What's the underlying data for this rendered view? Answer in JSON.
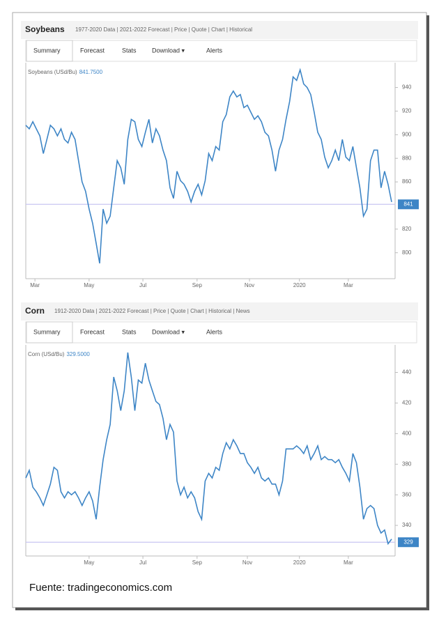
{
  "chart_data": [
    {
      "type": "line",
      "title": "Soybeans",
      "subtitle": "1977-2020 Data | 2021-2022 Forecast | Price | Quote | Chart | Historical",
      "tabs": [
        "Summary",
        "Forecast",
        "Stats",
        "Download ▾",
        "Alerts"
      ],
      "label": "Soybeans (USd/Bu)",
      "price": "841.7500",
      "color": "#3d85c6",
      "values": [
        908,
        905,
        911,
        905,
        899,
        884,
        896,
        908,
        905,
        899,
        905,
        896,
        893,
        902,
        896,
        878,
        860,
        852,
        837,
        825,
        808,
        791,
        837,
        825,
        831,
        855,
        878,
        872,
        858,
        896,
        913,
        911,
        896,
        890,
        902,
        913,
        893,
        905,
        899,
        887,
        878,
        855,
        846,
        869,
        861,
        858,
        852,
        843,
        852,
        858,
        849,
        861,
        884,
        878,
        890,
        887,
        911,
        917,
        932,
        937,
        932,
        934,
        923,
        925,
        919,
        913,
        916,
        911,
        902,
        899,
        887,
        869,
        887,
        896,
        913,
        928,
        949,
        946,
        955,
        943,
        940,
        934,
        919,
        902,
        896,
        881,
        872,
        878,
        887,
        878,
        896,
        881,
        878,
        890,
        872,
        855,
        831,
        837,
        878,
        887,
        887,
        855,
        869,
        858,
        843
      ],
      "xlim": [
        0,
        105
      ],
      "xticks": [
        {
          "value": 2.6,
          "label": "Mar"
        },
        {
          "value": 18,
          "label": "May"
        },
        {
          "value": 33.3,
          "label": "Jul"
        },
        {
          "value": 48.7,
          "label": "Sep"
        },
        {
          "value": 63.6,
          "label": "Nov"
        },
        {
          "value": 77.8,
          "label": "2020"
        },
        {
          "value": 91.7,
          "label": "Mar"
        }
      ],
      "ylim": [
        778,
        961
      ],
      "yticks": [
        940,
        920,
        900,
        880,
        860,
        820,
        800
      ],
      "price_marker": 841
    },
    {
      "type": "line",
      "title": "Corn",
      "subtitle": "1912-2020 Data | 2021-2022 Forecast | Price | Quote | Chart | Historical | News",
      "tabs": [
        "Summary",
        "Forecast",
        "Stats",
        "Download ▾",
        "Alerts"
      ],
      "label": "Corn (USd/Bu)",
      "price": "329.5000",
      "color": "#3d85c6",
      "values": [
        371,
        376,
        365,
        362,
        358,
        353,
        360,
        367,
        378,
        376,
        362,
        358,
        362,
        360,
        362,
        358,
        353,
        358,
        362,
        356,
        344,
        365,
        383,
        396,
        406,
        437,
        428,
        415,
        428,
        453,
        437,
        415,
        435,
        433,
        446,
        435,
        428,
        421,
        419,
        410,
        396,
        406,
        401,
        369,
        360,
        365,
        358,
        362,
        358,
        349,
        344,
        369,
        374,
        371,
        378,
        376,
        387,
        394,
        390,
        396,
        392,
        387,
        387,
        381,
        378,
        374,
        378,
        371,
        369,
        371,
        367,
        367,
        360,
        369,
        390,
        390,
        390,
        392,
        390,
        387,
        392,
        383,
        387,
        392,
        383,
        385,
        383,
        383,
        381,
        383,
        378,
        374,
        369,
        387,
        381,
        365,
        344,
        351,
        353,
        351,
        340,
        335,
        337,
        328,
        331
      ],
      "xlim": [
        0,
        105
      ],
      "xticks": [
        {
          "value": 18,
          "label": "May"
        },
        {
          "value": 33.3,
          "label": "Jul"
        },
        {
          "value": 48.7,
          "label": "Sep"
        },
        {
          "value": 63,
          "label": "Nov"
        },
        {
          "value": 77.8,
          "label": "2020"
        },
        {
          "value": 91.7,
          "label": "Mar"
        }
      ],
      "ylim": [
        320,
        458
      ],
      "yticks": [
        440,
        420,
        400,
        380,
        360,
        340
      ],
      "price_marker": 329
    }
  ],
  "footer": "Fuente: tradingeconomics.com"
}
